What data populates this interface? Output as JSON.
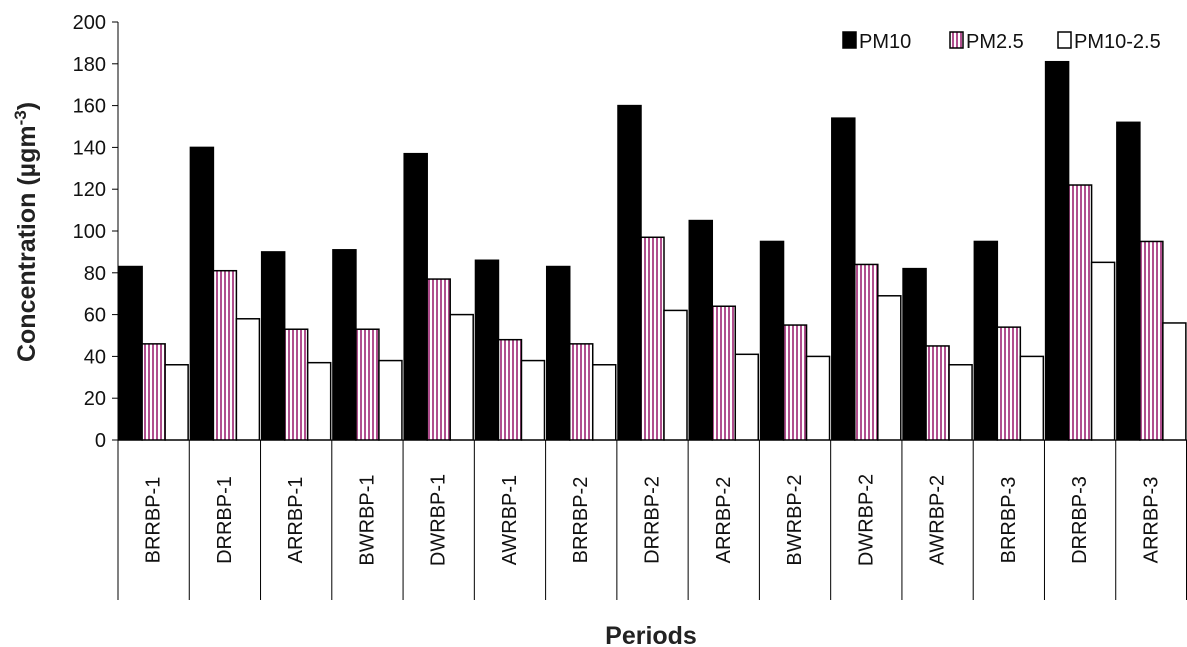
{
  "chart_data": {
    "type": "bar",
    "title": "",
    "xlabel": "Periods",
    "ylabel": "Concentration (µgm",
    "ylabel_sup": "-3",
    "ylabel_close": ")",
    "ylim": [
      0,
      200
    ],
    "yticks": [
      0,
      20,
      40,
      60,
      80,
      100,
      120,
      140,
      160,
      180,
      200
    ],
    "grid": false,
    "legend_position": "top-right",
    "categories": [
      "BRRBP-1",
      "DRRBP-1",
      "ARRBP-1",
      "BWRBP-1",
      "DWRBP-1",
      "AWRBP-1",
      "BRRBP-2",
      "DRRBP-2",
      "ARRBP-2",
      "BWRBP-2",
      "DWRBP-2",
      "AWRBP-2",
      "BRRBP-3",
      "DRRBP-3",
      "ARRBP-3"
    ],
    "series": [
      {
        "name": "PM10",
        "fill": "#000000",
        "pattern": "solid",
        "values": [
          83,
          140,
          90,
          91,
          137,
          86,
          83,
          160,
          105,
          95,
          154,
          82,
          95,
          181,
          152
        ]
      },
      {
        "name": "PM2.5",
        "fill": "#c890b8",
        "pattern": "vertical-stripes",
        "values": [
          46,
          81,
          53,
          53,
          77,
          48,
          46,
          97,
          64,
          55,
          84,
          45,
          54,
          122,
          95
        ]
      },
      {
        "name": "PM10-2.5",
        "fill": "#ffffff",
        "pattern": "solid",
        "values": [
          36,
          58,
          37,
          38,
          60,
          38,
          36,
          62,
          41,
          40,
          69,
          36,
          40,
          85,
          56
        ]
      }
    ]
  }
}
